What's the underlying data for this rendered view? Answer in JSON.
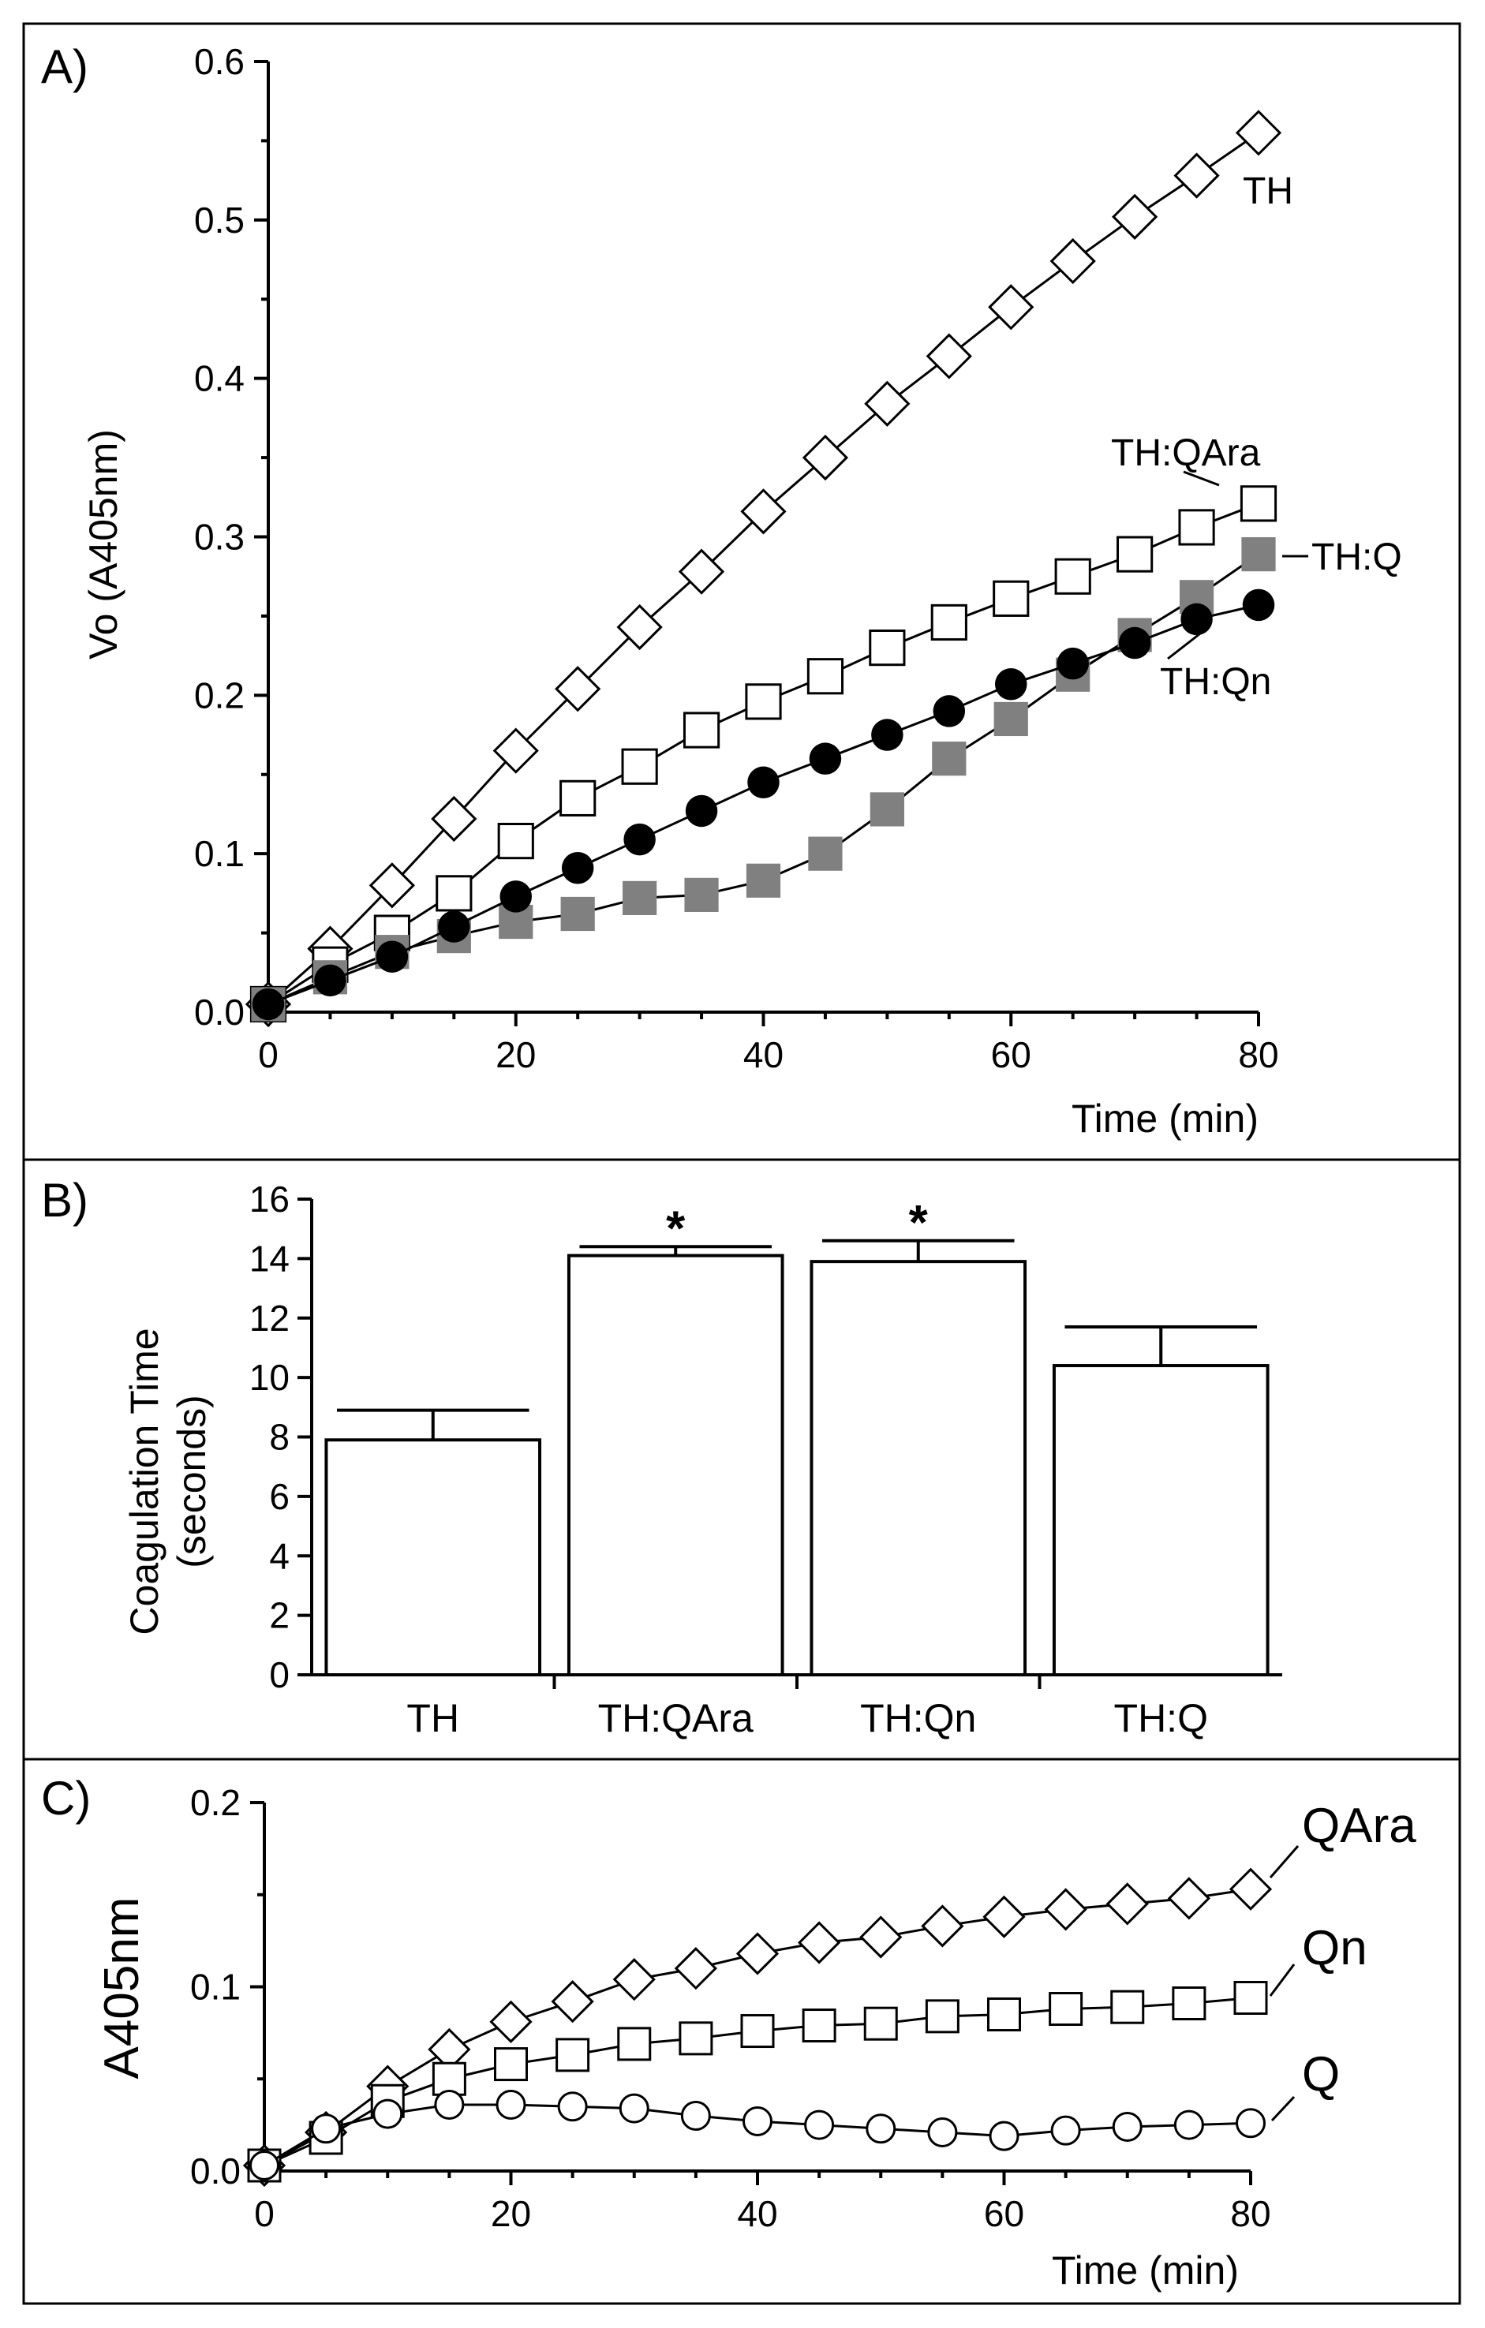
{
  "chart_data": [
    {
      "type": "line",
      "panel_label": "A)",
      "xlabel": "Time (min)",
      "ylabel": "Vo (A405nm)",
      "xlim": [
        0,
        80
      ],
      "ylim": [
        0,
        0.6
      ],
      "xticks": [
        "0",
        "20",
        "40",
        "60",
        "80"
      ],
      "yticks": [
        "0.0",
        "0.1",
        "0.2",
        "0.3",
        "0.4",
        "0.5",
        "0.6"
      ],
      "x": [
        0,
        5,
        10,
        15,
        20,
        25,
        30,
        35,
        40,
        45,
        50,
        55,
        60,
        65,
        70,
        75,
        80
      ],
      "series": [
        {
          "name": "TH",
          "marker": "diamond-open",
          "values": [
            0.005,
            0.04,
            0.08,
            0.122,
            0.165,
            0.204,
            0.243,
            0.278,
            0.316,
            0.35,
            0.384,
            0.414,
            0.445,
            0.474,
            0.502,
            0.528,
            0.555
          ]
        },
        {
          "name": "TH:QAra",
          "marker": "square-open",
          "values": [
            0.005,
            0.03,
            0.05,
            0.075,
            0.108,
            0.135,
            0.155,
            0.178,
            0.196,
            0.212,
            0.23,
            0.246,
            0.261,
            0.275,
            0.289,
            0.306,
            0.321
          ]
        },
        {
          "name": "TH:Q",
          "marker": "square-gray",
          "values": [
            0.005,
            0.022,
            0.038,
            0.048,
            0.057,
            0.062,
            0.072,
            0.074,
            0.083,
            0.1,
            0.128,
            0.16,
            0.185,
            0.213,
            0.238,
            0.262,
            0.289
          ]
        },
        {
          "name": "TH:Qn",
          "marker": "circle-filled",
          "values": [
            0.005,
            0.02,
            0.035,
            0.054,
            0.073,
            0.091,
            0.109,
            0.127,
            0.145,
            0.16,
            0.175,
            0.19,
            0.207,
            0.22,
            0.233,
            0.248,
            0.257
          ]
        }
      ]
    },
    {
      "type": "bar",
      "panel_label": "B)",
      "ylabel_lines": [
        "Coagulation Time",
        "(seconds)"
      ],
      "ylim": [
        0,
        16
      ],
      "yticks": [
        "0",
        "2",
        "4",
        "6",
        "8",
        "10",
        "12",
        "14",
        "16"
      ],
      "categories": [
        "TH",
        "TH:QAra",
        "TH:Qn",
        "TH:Q"
      ],
      "values": [
        7.9,
        14.1,
        13.9,
        10.4
      ],
      "errors": [
        1.0,
        0.3,
        0.7,
        1.3
      ],
      "significance": [
        "",
        "*",
        "*",
        ""
      ]
    },
    {
      "type": "line",
      "panel_label": "C)",
      "xlabel": "Time (min)",
      "ylabel": "A405nm",
      "xlim": [
        0,
        80
      ],
      "ylim": [
        0,
        0.2
      ],
      "xticks": [
        "0",
        "20",
        "40",
        "60",
        "80"
      ],
      "yticks": [
        "0.0",
        "0.1",
        "0.2"
      ],
      "x": [
        0,
        5,
        10,
        15,
        20,
        25,
        30,
        35,
        40,
        45,
        50,
        55,
        60,
        65,
        70,
        75,
        80
      ],
      "series": [
        {
          "name": "QAra",
          "marker": "diamond-open",
          "values": [
            0.003,
            0.021,
            0.046,
            0.066,
            0.081,
            0.092,
            0.104,
            0.11,
            0.118,
            0.124,
            0.127,
            0.133,
            0.138,
            0.142,
            0.145,
            0.148,
            0.153
          ]
        },
        {
          "name": "Qn",
          "marker": "square-open",
          "values": [
            0.003,
            0.018,
            0.038,
            0.05,
            0.058,
            0.063,
            0.069,
            0.072,
            0.076,
            0.079,
            0.08,
            0.084,
            0.085,
            0.088,
            0.089,
            0.091,
            0.094
          ]
        },
        {
          "name": "Q",
          "marker": "circle-open",
          "values": [
            0.003,
            0.023,
            0.031,
            0.036,
            0.036,
            0.035,
            0.034,
            0.03,
            0.027,
            0.025,
            0.023,
            0.021,
            0.019,
            0.022,
            0.024,
            0.025,
            0.026
          ]
        }
      ]
    }
  ]
}
